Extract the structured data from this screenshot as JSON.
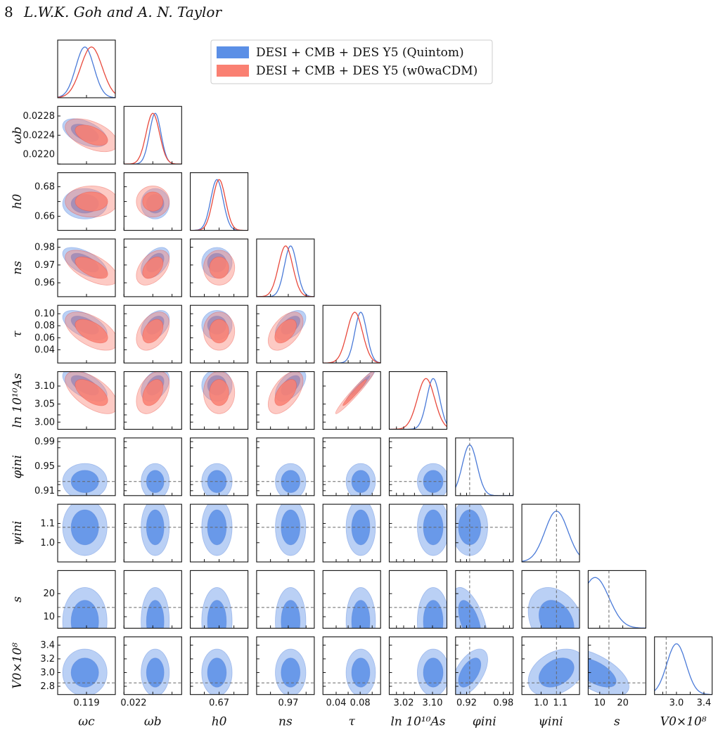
{
  "page_header": {
    "page_number": "8",
    "authors": "L.W.K. Goh and A. N. Taylor"
  },
  "chart_data": {
    "type": "corner",
    "parameters": [
      {
        "name": "omega_c",
        "label": "ωc",
        "range": [
          0.1155,
          0.1225
        ],
        "ticks": [
          0.119
        ],
        "tick_labels": [
          "0.119"
        ]
      },
      {
        "name": "omega_b",
        "label": "ωb",
        "range": [
          0.0218,
          0.023
        ],
        "ticks": [
          0.0218,
          0.0224,
          0.0228
        ],
        "tick_labels": [
          "0.022"
        ],
        "y_tick_labels": [
          "0.0220",
          "0.0224",
          "0.0228"
        ]
      },
      {
        "name": "h0",
        "label": "h0",
        "range": [
          0.6505,
          0.6895
        ],
        "ticks": [
          0.66,
          0.67,
          0.68
        ],
        "tick_labels": [
          "0.67"
        ],
        "y_tick_labels": [
          "0.66",
          "0.68"
        ]
      },
      {
        "name": "n_s",
        "label": "ns",
        "range": [
          0.9522,
          0.9846
        ],
        "ticks": [
          0.96,
          0.97,
          0.98
        ],
        "tick_labels": [
          "0.97"
        ],
        "y_tick_labels": [
          "0.96",
          "0.97",
          "0.98"
        ]
      },
      {
        "name": "tau",
        "label": "τ",
        "range": [
          0.018,
          0.114
        ],
        "ticks": [
          0.04,
          0.06,
          0.08,
          0.1
        ],
        "tick_labels": [
          "0.04",
          "0.08"
        ],
        "y_tick_labels": [
          "0.04",
          "0.06",
          "0.08",
          "0.10"
        ]
      },
      {
        "name": "ln10As",
        "label": "ln 10¹⁰As",
        "range": [
          2.98,
          3.14
        ],
        "ticks": [
          3.0,
          3.02,
          3.05,
          3.1
        ],
        "tick_labels": [
          "3.02",
          "3.10"
        ],
        "y_tick_labels": [
          "3.00",
          "3.05",
          "3.10"
        ]
      },
      {
        "name": "phi_ini",
        "label": "φini",
        "range": [
          0.902,
          0.996
        ],
        "ticks": [
          0.91,
          0.92,
          0.95,
          0.98,
          0.99
        ],
        "tick_labels": [
          "0.92",
          "0.98"
        ],
        "y_tick_labels": [
          "0.91",
          "0.95",
          "0.99"
        ]
      },
      {
        "name": "psi_ini",
        "label": "ψini",
        "range": [
          0.9,
          1.2
        ],
        "ticks": [
          1.0,
          1.1
        ],
        "tick_labels": [
          "1.0",
          "1.1"
        ],
        "y_tick_labels": [
          "1.0",
          "1.1"
        ]
      },
      {
        "name": "s",
        "label": "s",
        "range": [
          5,
          30
        ],
        "ticks": [
          10,
          20
        ],
        "tick_labels": [
          "10",
          "20"
        ],
        "y_tick_labels": [
          "10",
          "20"
        ]
      },
      {
        "name": "V0e8",
        "label": "V0×10⁸",
        "range": [
          2.68,
          3.52
        ],
        "ticks": [
          2.8,
          3.0,
          3.2,
          3.4
        ],
        "tick_labels": [
          "3.0",
          "3.4"
        ],
        "y_tick_labels": [
          "2.8",
          "3.0",
          "3.2",
          "3.4"
        ]
      }
    ],
    "series": [
      {
        "name": "DESI + CMB + DES Y5 (Quintom)",
        "color_fill": "#5b8fe6",
        "color_line": "#4a7ad8",
        "params": [
          "omega_c",
          "omega_b",
          "h0",
          "n_s",
          "tau",
          "ln10As",
          "phi_ini",
          "psi_ini",
          "s",
          "V0e8"
        ],
        "means": [
          0.1188,
          0.02245,
          0.6685,
          0.9713,
          0.081,
          3.102,
          0.925,
          1.08,
          8.0,
          3.0
        ],
        "sigmas": [
          0.0011,
          0.00012,
          0.0042,
          0.0035,
          0.01,
          0.018,
          0.012,
          0.06,
          6.0,
          0.14
        ],
        "correlations": {
          "omega_c|omega_b": -0.5,
          "omega_c|n_s": -0.6,
          "omega_c|tau": -0.55,
          "omega_c|ln10As": -0.6,
          "omega_b|n_s": 0.45,
          "omega_b|tau": 0.4,
          "omega_b|ln10As": 0.4,
          "n_s|tau": 0.5,
          "n_s|ln10As": 0.55,
          "tau|ln10As": 0.97,
          "phi_ini|s": -0.55,
          "psi_ini|s": -0.3,
          "phi_ini|V0e8": 0.55,
          "psi_ini|V0e8": 0.35,
          "s|V0e8": -0.6
        }
      },
      {
        "name": "DESI + CMB + DES Y5 (w0waCDM)",
        "color_fill": "#fa8072",
        "color_line": "#e8493c",
        "params": [
          "omega_c",
          "omega_b",
          "h0",
          "n_s",
          "tau",
          "ln10As"
        ],
        "means": [
          0.1196,
          0.0224,
          0.67,
          0.9685,
          0.071,
          3.082
        ],
        "sigmas": [
          0.0013,
          0.00014,
          0.0043,
          0.004,
          0.013,
          0.024
        ],
        "correlations": {
          "omega_c|omega_b": -0.5,
          "omega_c|n_s": -0.6,
          "omega_c|tau": -0.55,
          "omega_c|ln10As": -0.6,
          "omega_b|n_s": 0.45,
          "omega_b|tau": 0.4,
          "omega_b|ln10As": 0.4,
          "n_s|tau": 0.5,
          "n_s|ln10As": 0.55,
          "tau|ln10As": 0.97
        }
      }
    ],
    "reference_values": {
      "phi_ini": 0.925,
      "psi_ini": 1.08,
      "s": 14,
      "V0e8": 2.85
    },
    "legend": {
      "position": "top-right",
      "entries": [
        "DESI + CMB + DES Y5 (Quintom)",
        "DESI + CMB + DES Y5 (w0waCDM)"
      ]
    },
    "grid": false
  }
}
